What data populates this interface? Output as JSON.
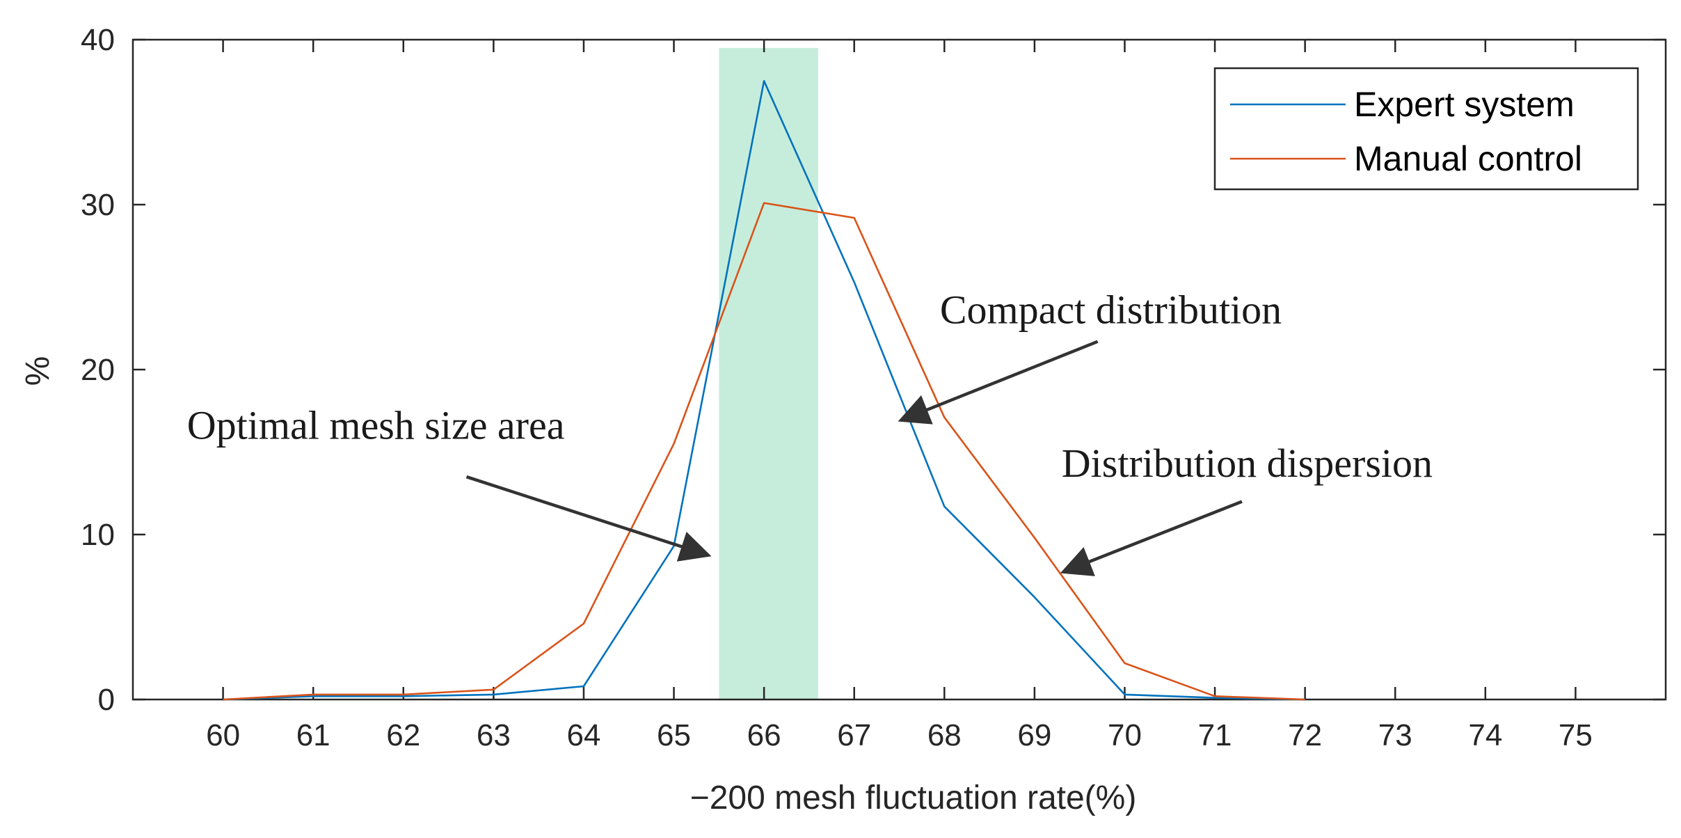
{
  "chart_data": {
    "type": "line",
    "title": "",
    "xlabel": "−200 mesh fluctuation rate(%)",
    "ylabel": "%",
    "xlim": [
      59,
      76
    ],
    "ylim": [
      0,
      40
    ],
    "xticks": [
      60,
      61,
      62,
      63,
      64,
      65,
      66,
      67,
      68,
      69,
      70,
      71,
      72,
      73,
      74,
      75
    ],
    "yticks": [
      0,
      10,
      20,
      30,
      40
    ],
    "grid": false,
    "legend_position": "top-right",
    "series": [
      {
        "name": "Expert system",
        "color": "#0072BD",
        "x": [
          60,
          61,
          62,
          63,
          64,
          65,
          66,
          67,
          68,
          69,
          70,
          71,
          72
        ],
        "values": [
          0,
          0.2,
          0.2,
          0.3,
          0.8,
          9.3,
          37.5,
          25.3,
          11.7,
          6.2,
          0.3,
          0.1,
          0
        ]
      },
      {
        "name": "Manual control",
        "color": "#D95319",
        "x": [
          60,
          61,
          62,
          63,
          64,
          65,
          66,
          67,
          68,
          69,
          70,
          71,
          72
        ],
        "values": [
          0,
          0.3,
          0.3,
          0.6,
          4.6,
          15.5,
          30.1,
          29.2,
          17.1,
          9.8,
          2.2,
          0.2,
          0
        ]
      }
    ],
    "highlight_region": {
      "label": "Optimal mesh size area",
      "x_range": [
        65.5,
        66.6
      ],
      "y_range": [
        0,
        39.5
      ],
      "color": "#C6EDDC"
    },
    "annotations": [
      {
        "text": "Optimal mesh size area",
        "text_at": [
          59.6,
          15.8
        ],
        "arrow_from": [
          62.7,
          13.5
        ],
        "arrow_to": [
          65.35,
          8.8
        ]
      },
      {
        "text": "Compact distribution",
        "text_at": [
          67.95,
          22.8
        ],
        "arrow_from": [
          69.7,
          21.7
        ],
        "arrow_to": [
          67.55,
          17.0
        ]
      },
      {
        "text": "Distribution dispersion",
        "text_at": [
          69.3,
          13.5
        ],
        "arrow_from": [
          71.3,
          12.0
        ],
        "arrow_to": [
          69.35,
          7.8
        ]
      }
    ]
  }
}
